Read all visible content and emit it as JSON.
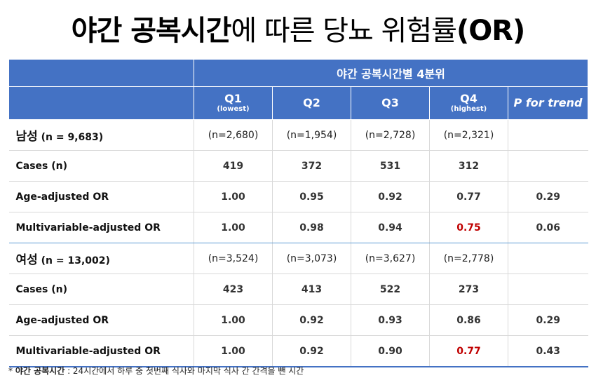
{
  "title": {
    "bold": "야간 공복시간",
    "rest": "에 따른 당뇨 위험률",
    "suffix": "(OR)"
  },
  "table": {
    "group_header": "야간 공복시간별 4분위",
    "columns": [
      {
        "label": "Q1",
        "sub": "(lowest)"
      },
      {
        "label": "Q2",
        "sub": ""
      },
      {
        "label": "Q3",
        "sub": ""
      },
      {
        "label": "Q4",
        "sub": "(highest)"
      },
      {
        "label": "P for trend",
        "sub": ""
      }
    ],
    "groups": [
      {
        "name": "남성",
        "n": "(n = 9,683)",
        "counts": [
          "(n=2,680)",
          "(n=1,954)",
          "(n=2,728)",
          "(n=2,321)",
          ""
        ],
        "rows": [
          {
            "label": "Cases (n)",
            "values": [
              "419",
              "372",
              "531",
              "312",
              ""
            ]
          },
          {
            "label": "Age-adjusted OR",
            "values": [
              "1.00",
              "0.95",
              "0.92",
              "0.77",
              "0.29"
            ]
          },
          {
            "label": "Multivariable-adjusted OR",
            "values": [
              "1.00",
              "0.98",
              "0.94",
              "0.75",
              "0.06"
            ],
            "highlight_index": 3
          }
        ]
      },
      {
        "name": "여성",
        "n": "(n = 13,002)",
        "counts": [
          "(n=3,524)",
          "(n=3,073)",
          "(n=3,627)",
          "(n=2,778)",
          ""
        ],
        "rows": [
          {
            "label": "Cases (n)",
            "values": [
              "423",
              "413",
              "522",
              "273",
              ""
            ]
          },
          {
            "label": "Age-adjusted OR",
            "values": [
              "1.00",
              "0.92",
              "0.93",
              "0.86",
              "0.29"
            ]
          },
          {
            "label": "Multivariable-adjusted OR",
            "values": [
              "1.00",
              "0.92",
              "0.90",
              "0.77",
              "0.43"
            ],
            "highlight_index": 3
          }
        ]
      }
    ],
    "colors": {
      "header": "#4472c4",
      "highlight": "#c00000",
      "divider": "#5b9bd5"
    }
  },
  "footnote": {
    "marker": "* ",
    "term": "야간 공복시간",
    "definition": " : 24시간에서 하루 중 첫번째 식사와 마지막 식사 간 간격을 뺀 시간"
  }
}
